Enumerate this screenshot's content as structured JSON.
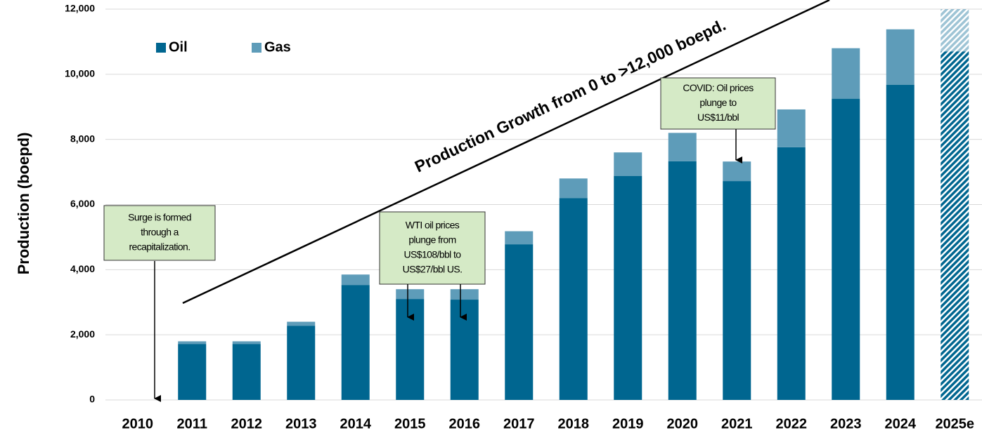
{
  "chart_data": {
    "type": "stacked_bar",
    "y_label": "Production (boepd)",
    "categories": [
      "2010",
      "2011",
      "2012",
      "2013",
      "2014",
      "2015",
      "2016",
      "2017",
      "2018",
      "2019",
      "2020",
      "2021",
      "2022",
      "2023",
      "2024",
      "2025e"
    ],
    "series": [
      {
        "name": "Oil",
        "color": "#006690",
        "values": [
          0,
          1720,
          1720,
          2280,
          3530,
          3100,
          3080,
          4780,
          6200,
          6880,
          7330,
          6720,
          7760,
          9250,
          9680,
          10700
        ]
      },
      {
        "name": "Gas",
        "color": "#5e9cb9",
        "values": [
          0,
          80,
          80,
          120,
          320,
          300,
          320,
          400,
          600,
          720,
          870,
          600,
          1160,
          1550,
          1700,
          1300
        ]
      }
    ],
    "hatch_last": true,
    "ylim": [
      0,
      12000
    ],
    "yticks": [
      0,
      {
        "value": 2000,
        "label": "2,000"
      },
      {
        "value": 4000,
        "label": "4,000"
      },
      {
        "value": 6000,
        "label": "6,000"
      },
      {
        "value": 8000,
        "label": "8,000"
      },
      {
        "value": 10000,
        "label": "10,000"
      },
      {
        "value": 12000,
        "label": "12,000"
      }
    ],
    "grid": true,
    "trend_label": "Production Growth from 0 to >12,000 boepd.",
    "annotations": [
      {
        "lines": [
          "Surge is formed",
          "through a",
          "recapitalization."
        ]
      },
      {
        "lines": [
          "WTI oil prices",
          "plunge from",
          "US$108/bbl to",
          "US$27/bbl US."
        ]
      },
      {
        "lines": [
          "COVID: Oil prices",
          "plunge to",
          "US$11/bbl"
        ]
      }
    ]
  }
}
